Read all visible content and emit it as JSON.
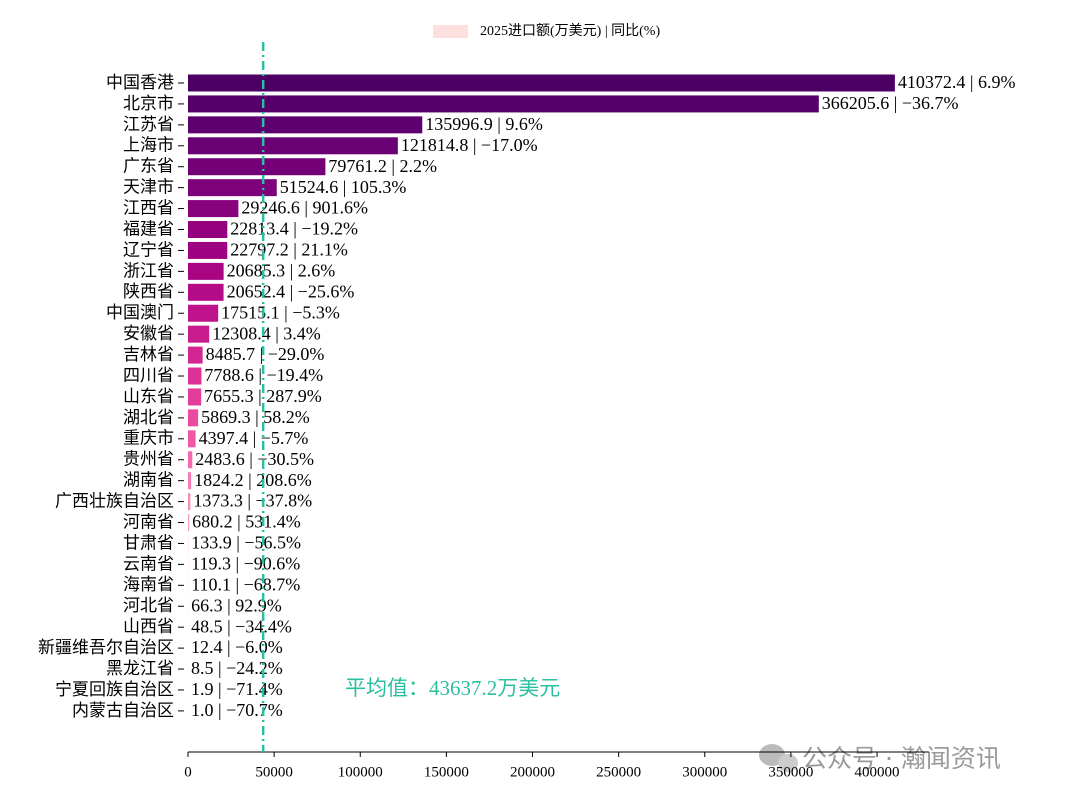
{
  "chart_data": {
    "type": "barh",
    "legend_label": "2025进口额(万美元) | 同比(%)",
    "legend_color": "#fde0dd",
    "legend_position": "top",
    "categories": [
      "中国香港",
      "北京市",
      "江苏省",
      "上海市",
      "广东省",
      "天津市",
      "江西省",
      "福建省",
      "辽宁省",
      "浙江省",
      "陕西省",
      "中国澳门",
      "安徽省",
      "吉林省",
      "四川省",
      "山东省",
      "湖北省",
      "重庆市",
      "贵州省",
      "湖南省",
      "广西壮族自治区",
      "河南省",
      "甘肃省",
      "云南省",
      "海南省",
      "河北省",
      "山西省",
      "新疆维吾尔自治区",
      "黑龙江省",
      "宁夏回族自治区",
      "内蒙古自治区"
    ],
    "values": [
      410372.4,
      366205.6,
      135996.9,
      121814.8,
      79761.2,
      51524.6,
      29246.6,
      22813.4,
      22797.2,
      20685.3,
      20652.4,
      17515.1,
      12308.4,
      8485.7,
      7788.6,
      7655.3,
      5869.3,
      4397.4,
      2483.6,
      1824.2,
      1373.3,
      680.2,
      133.9,
      119.3,
      110.1,
      66.3,
      48.5,
      12.4,
      8.5,
      1.9,
      1.0
    ],
    "value_labels": [
      "410372.4 | 6.9%",
      "366205.6 | −36.7%",
      "135996.9 | 9.6%",
      "121814.8 | −17.0%",
      "79761.2 | 2.2%",
      "51524.6 | 105.3%",
      "29246.6 | 901.6%",
      "22813.4 | −19.2%",
      "22797.2 | 21.1%",
      "20685.3 | 2.6%",
      "20652.4 | −25.6%",
      "17515.1 | −5.3%",
      "12308.4 | 3.4%",
      "8485.7 | −29.0%",
      "7788.6 | −19.4%",
      "7655.3 | 287.9%",
      "5869.3 | 58.2%",
      "4397.4 | −5.7%",
      "2483.6 | −30.5%",
      "1824.2 | 208.6%",
      "1373.3 | −37.8%",
      "680.2 | 531.4%",
      "133.9 | −56.5%",
      "119.3 | −90.6%",
      "110.1 | −68.7%",
      "66.3 | 92.9%",
      "48.5 | −34.4%",
      "12.4 | −6.0%",
      "8.5 | −24.2%",
      "1.9 | −71.4%",
      "1.0 | −70.7%"
    ],
    "colors": [
      "#4d0064",
      "#55006b",
      "#5f0070",
      "#690074",
      "#730077",
      "#7d017a",
      "#88017d",
      "#93017f",
      "#9e0181",
      "#a90583",
      "#b40b87",
      "#bf138b",
      "#c91c8f",
      "#d32692",
      "#dc3196",
      "#e33d9b",
      "#ea4aa0",
      "#f058a6",
      "#f46aac",
      "#f77cb2",
      "#f98db8",
      "#fa9dbd",
      "#fbabc2",
      "#fbb8c8",
      "#fcc3cd",
      "#fcccd3",
      "#fdd4d8",
      "#fddbdd",
      "#fde0e0",
      "#fee4e3",
      "#fee8e6"
    ],
    "xlim": [
      0,
      430000
    ],
    "xticks": [
      0,
      50000,
      100000,
      150000,
      200000,
      250000,
      300000,
      350000,
      400000
    ],
    "mean_value": 43637.2,
    "mean_color": "#2bbfa0",
    "annotation": "平均值：43637.2万美元",
    "watermark": "公众号 · 瀚闻资讯"
  }
}
